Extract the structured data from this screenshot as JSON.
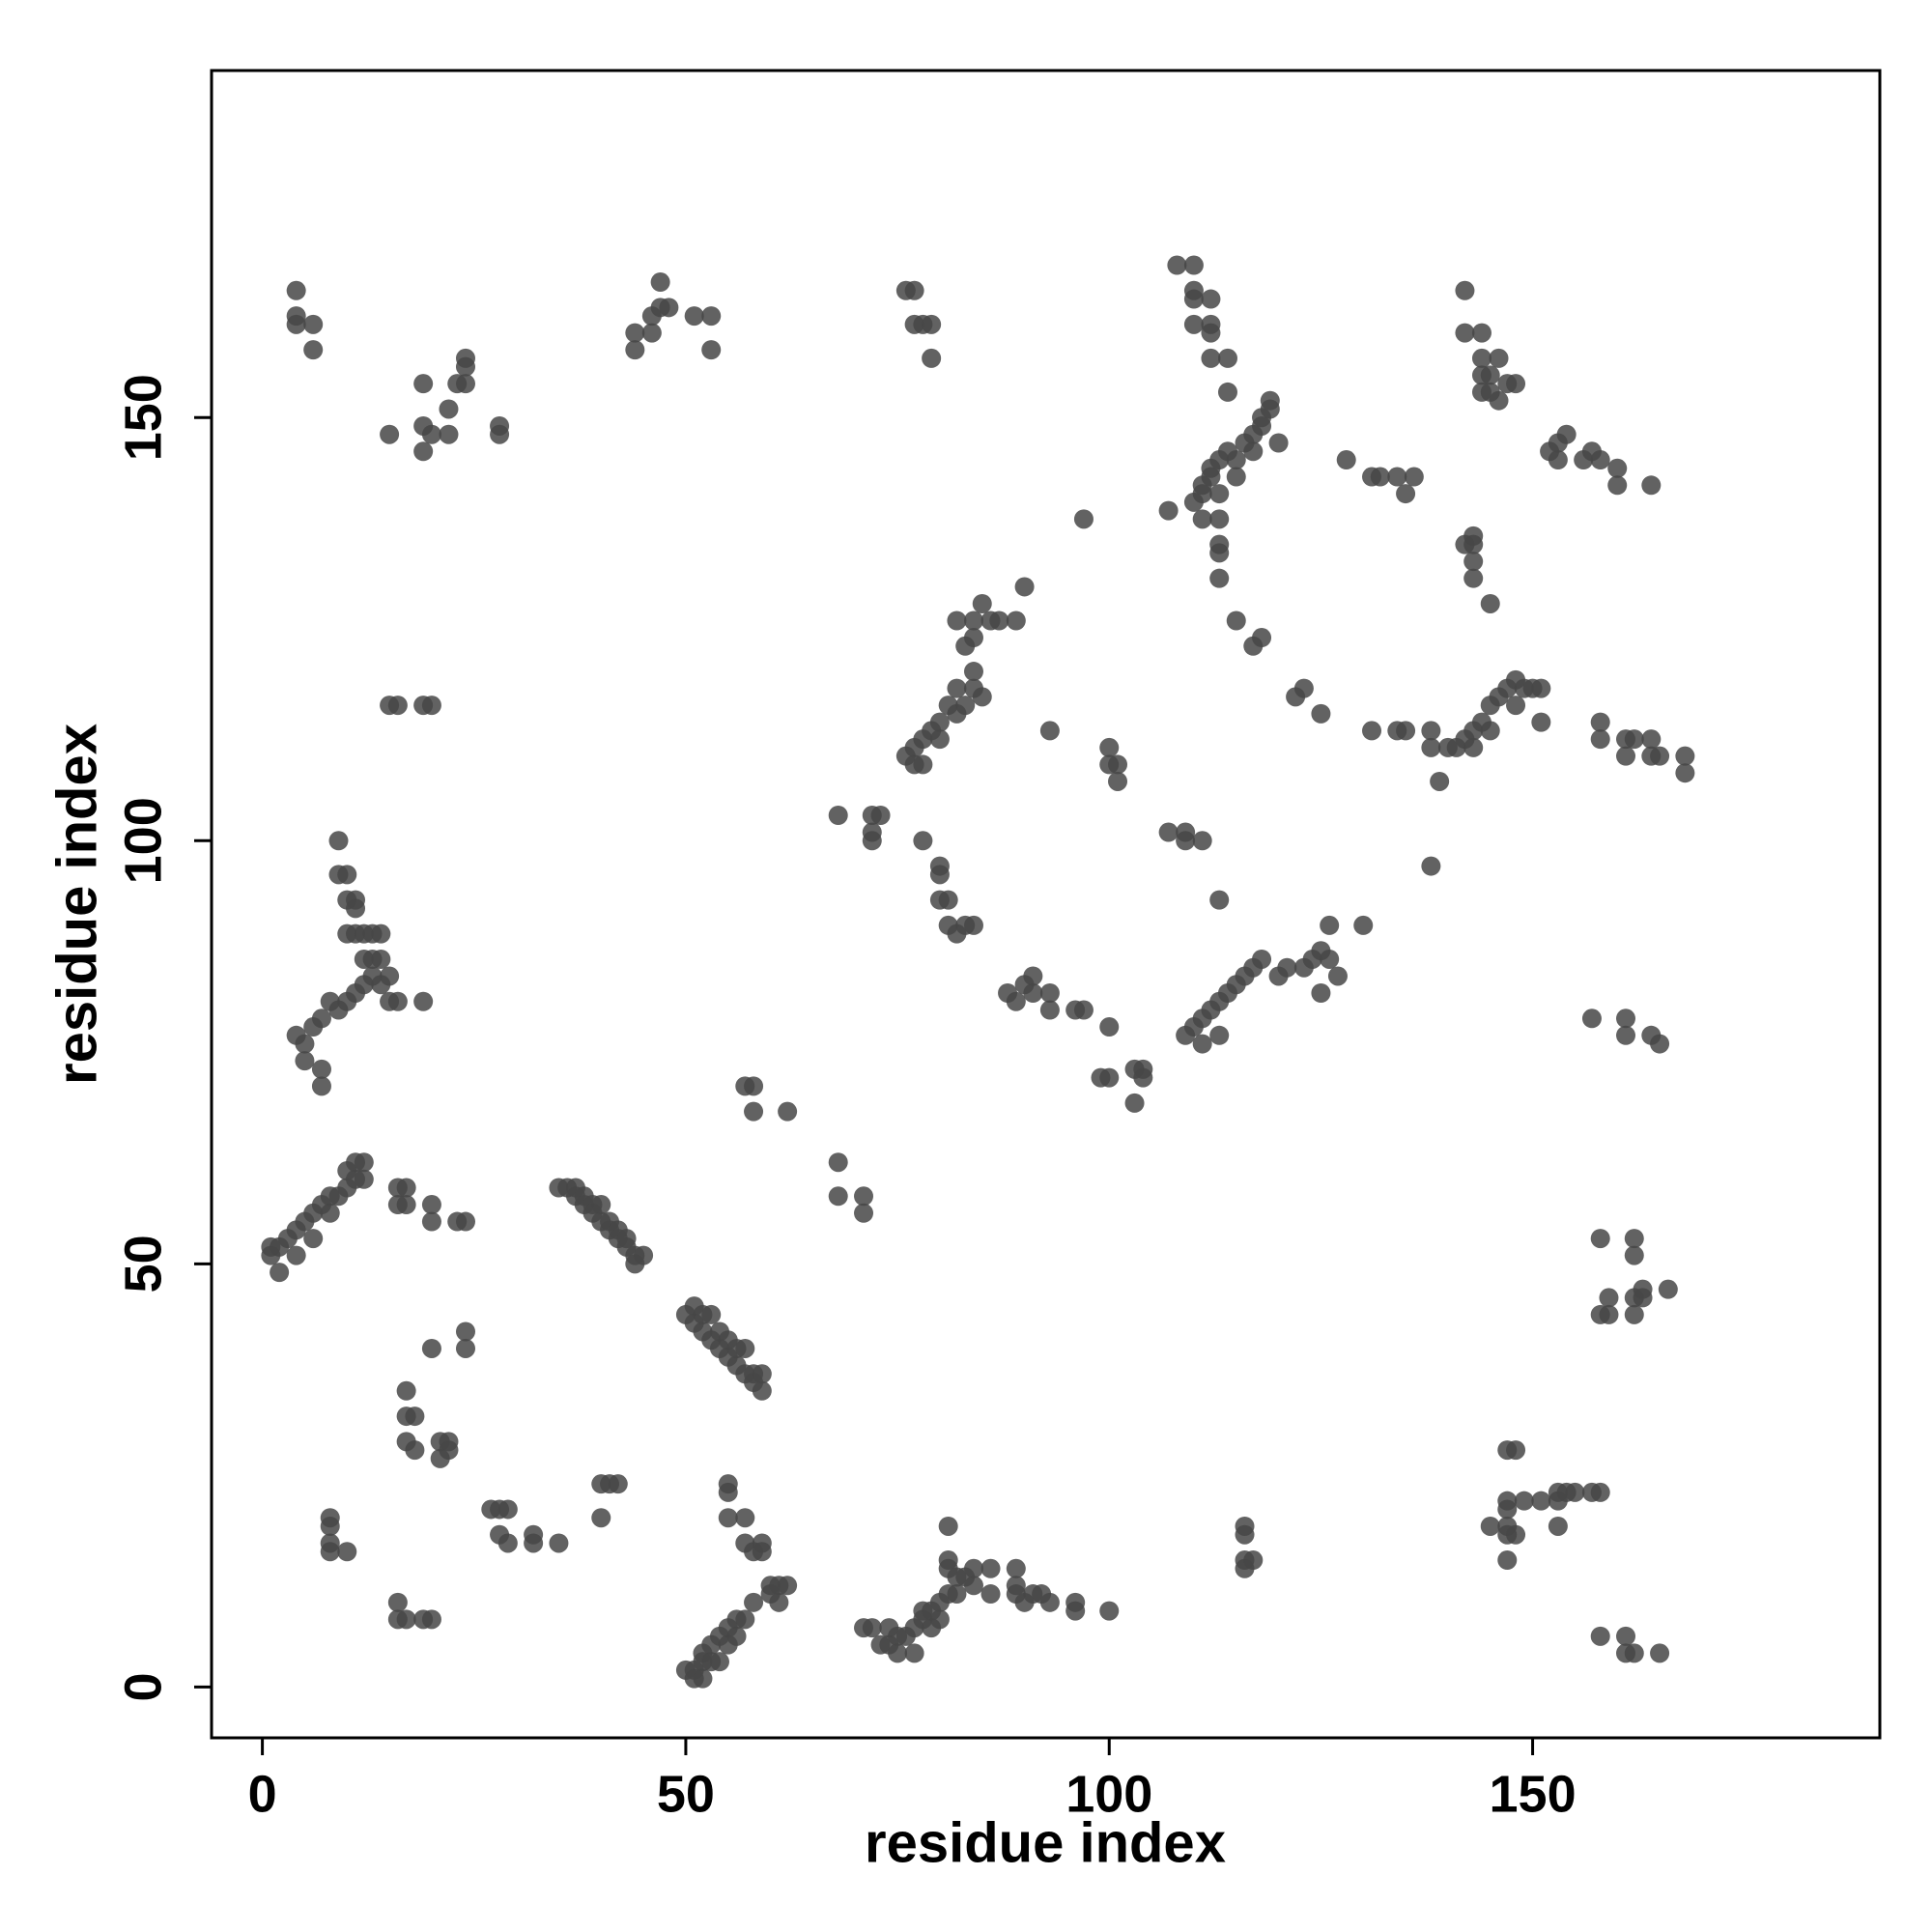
{
  "chart_data": {
    "type": "scatter",
    "xlabel": "residue index",
    "ylabel": "residue index",
    "xlim": [
      -6,
      191
    ],
    "ylim": [
      -6,
      191
    ],
    "xticks": [
      0,
      50,
      100,
      150
    ],
    "yticks": [
      0,
      50,
      100,
      150
    ],
    "series": [
      {
        "color": "#474747",
        "x": [
          4,
          4,
          4,
          6,
          6,
          15,
          20,
          19,
          19,
          19,
          22,
          22,
          23,
          24,
          24,
          24,
          28,
          28,
          15,
          16,
          19,
          20,
          44,
          44,
          46,
          46,
          47,
          47,
          48,
          51,
          53,
          53,
          76,
          77,
          77,
          78,
          79,
          79,
          108,
          110,
          110,
          110,
          110,
          112,
          112,
          112,
          112,
          114,
          114,
          110,
          111,
          111,
          112,
          112,
          113,
          114,
          115,
          116,
          117,
          118,
          118,
          119,
          119,
          120,
          117,
          115,
          113,
          111,
          113,
          113,
          113,
          113,
          115,
          117,
          118,
          128,
          131,
          132,
          134,
          135,
          136,
          142,
          142,
          144,
          144,
          144,
          145,
          146,
          145,
          146,
          147,
          148,
          144,
          152,
          153,
          153,
          154,
          156,
          157,
          158,
          160,
          160,
          164,
          142,
          143,
          143,
          143,
          143,
          145,
          107,
          97,
          84,
          83,
          84,
          84,
          86,
          87,
          82,
          85,
          89,
          90,
          82,
          84,
          85,
          81,
          80,
          79,
          78,
          77,
          76,
          77,
          78,
          80,
          82,
          83,
          93,
          100,
          100,
          101,
          101,
          122,
          123,
          125,
          131,
          134,
          135,
          138,
          138,
          139,
          140,
          141,
          142,
          143,
          144,
          145,
          146,
          147,
          148,
          149,
          150,
          151,
          143,
          145,
          148,
          151,
          158,
          158,
          161,
          162,
          161,
          164,
          164,
          165,
          168,
          168,
          138,
          68,
          72,
          72,
          72,
          73,
          78,
          80,
          80,
          80,
          81,
          81,
          82,
          83,
          84,
          107,
          109,
          109,
          111,
          113,
          88,
          89,
          90,
          91,
          91,
          93,
          93,
          96,
          97,
          100,
          99,
          100,
          103,
          104,
          104,
          103,
          109,
          110,
          111,
          112,
          113,
          114,
          115,
          116,
          117,
          118,
          120,
          121,
          123,
          124,
          125,
          126,
          127,
          125,
          126,
          130,
          111,
          113,
          157,
          161,
          161,
          164,
          165,
          4,
          5,
          5,
          6,
          7,
          7,
          7,
          8,
          9,
          10,
          11,
          12,
          13,
          14,
          15,
          16,
          19,
          10,
          11,
          12,
          13,
          14,
          12,
          13,
          14,
          10,
          11,
          11,
          9,
          10,
          9,
          15,
          57,
          58,
          58,
          62,
          68,
          68,
          71,
          71,
          1,
          1,
          2,
          2,
          3,
          4,
          4,
          5,
          6,
          6,
          7,
          8,
          8,
          9,
          10,
          10,
          11,
          11,
          12,
          12,
          16,
          16,
          17,
          17,
          20,
          20,
          23,
          24,
          35,
          36,
          37,
          37,
          38,
          38,
          39,
          39,
          40,
          40,
          41,
          41,
          42,
          42,
          43,
          43,
          44,
          44,
          45,
          50,
          51,
          51,
          52,
          52,
          53,
          53,
          54,
          54,
          55,
          55,
          56,
          56,
          57,
          57,
          58,
          58,
          59,
          59,
          20,
          24,
          24,
          17,
          17,
          18,
          17,
          18,
          21,
          21,
          22,
          22,
          27,
          28,
          28,
          29,
          29,
          32,
          32,
          35,
          40,
          40,
          41,
          42,
          8,
          8,
          8,
          8,
          10,
          16,
          16,
          17,
          19,
          20,
          55,
          55,
          55,
          57,
          57,
          58,
          59,
          59,
          60,
          61,
          62,
          60,
          61,
          58,
          57,
          56,
          55,
          56,
          54,
          53,
          52,
          52,
          51,
          53,
          54,
          55,
          51,
          52,
          50,
          71,
          72,
          73,
          74,
          74,
          75,
          75,
          76,
          77,
          77,
          78,
          78,
          79,
          79,
          80,
          80,
          81,
          82,
          81,
          81,
          82,
          83,
          81,
          84,
          84,
          86,
          86,
          89,
          89,
          89,
          90,
          91,
          92,
          93,
          96,
          96,
          100,
          116,
          116,
          116,
          116,
          117,
          147,
          148,
          147,
          147,
          149,
          151,
          153,
          153,
          154,
          155,
          157,
          158,
          153,
          147,
          147,
          147,
          145,
          148,
          158,
          158,
          159,
          159,
          162,
          162,
          162,
          162,
          163,
          163,
          166,
          158,
          161,
          161,
          162,
          165
        ],
        "values": [
          165,
          162,
          161,
          161,
          158,
          148,
          148,
          149,
          146,
          154,
          148,
          151,
          154,
          154,
          156,
          157,
          148,
          149,
          116,
          116,
          116,
          116,
          158,
          160,
          162,
          160,
          163,
          166,
          163,
          162,
          162,
          158,
          165,
          165,
          161,
          161,
          157,
          161,
          168,
          168,
          165,
          164,
          161,
          164,
          161,
          160,
          157,
          157,
          153,
          140,
          141,
          142,
          143,
          144,
          145,
          146,
          145,
          147,
          148,
          149,
          150,
          151,
          152,
          147,
          146,
          143,
          141,
          138,
          138,
          135,
          134,
          131,
          126,
          123,
          124,
          145,
          143,
          143,
          143,
          141,
          143,
          165,
          160,
          160,
          157,
          155,
          155,
          157,
          153,
          152,
          154,
          154,
          153,
          146,
          145,
          147,
          148,
          145,
          146,
          145,
          144,
          142,
          142,
          135,
          135,
          136,
          133,
          131,
          128,
          139,
          138,
          120,
          123,
          124,
          126,
          126,
          126,
          126,
          128,
          126,
          130,
          118,
          118,
          117,
          116,
          114,
          113,
          112,
          111,
          110,
          109,
          109,
          112,
          115,
          116,
          113,
          111,
          109,
          109,
          107,
          117,
          118,
          115,
          113,
          113,
          113,
          111,
          113,
          107,
          111,
          111,
          112,
          113,
          114,
          116,
          117,
          118,
          119,
          118,
          118,
          118,
          111,
          113,
          116,
          114,
          114,
          112,
          112,
          112,
          110,
          112,
          110,
          110,
          110,
          108,
          97,
          103,
          103,
          101,
          100,
          103,
          100,
          96,
          97,
          93,
          93,
          90,
          89,
          90,
          90,
          101,
          101,
          100,
          100,
          93,
          82,
          81,
          83,
          84,
          82,
          82,
          80,
          80,
          80,
          78,
          72,
          72,
          73,
          73,
          72,
          69,
          77,
          78,
          79,
          80,
          81,
          82,
          83,
          84,
          85,
          86,
          84,
          85,
          85,
          86,
          87,
          86,
          84,
          82,
          90,
          90,
          76,
          77,
          79,
          79,
          77,
          77,
          76,
          77,
          76,
          74,
          78,
          79,
          73,
          71,
          81,
          80,
          81,
          82,
          83,
          84,
          83,
          81,
          81,
          81,
          89,
          89,
          89,
          89,
          89,
          86,
          86,
          86,
          93,
          93,
          92,
          96,
          96,
          100,
          84,
          71,
          71,
          68,
          68,
          62,
          58,
          58,
          56,
          51,
          52,
          49,
          52,
          53,
          51,
          54,
          55,
          56,
          53,
          57,
          56,
          58,
          58,
          59,
          61,
          60,
          62,
          60,
          62,
          59,
          57,
          57,
          59,
          57,
          55,
          55,
          55,
          59,
          59,
          58,
          59,
          57,
          58,
          56,
          57,
          55,
          57,
          54,
          55,
          53,
          54,
          52,
          53,
          50,
          51,
          51,
          44,
          45,
          43,
          42,
          44,
          41,
          44,
          40,
          42,
          39,
          41,
          38,
          40,
          37,
          40,
          36,
          37,
          35,
          37,
          40,
          42,
          40,
          35,
          32,
          32,
          29,
          28,
          29,
          27,
          28,
          29,
          21,
          21,
          18,
          21,
          17,
          17,
          18,
          17,
          20,
          24,
          24,
          24,
          20,
          19,
          17,
          16,
          16,
          10,
          8,
          8,
          8,
          8,
          24,
          23,
          20,
          20,
          17,
          16,
          17,
          16,
          12,
          12,
          12,
          11,
          10,
          10,
          8,
          8,
          7,
          6,
          6,
          5,
          4,
          3,
          2,
          3,
          3,
          5,
          1,
          1,
          2,
          7,
          7,
          5,
          5,
          7,
          6,
          4,
          6,
          4,
          7,
          8,
          9,
          7,
          9,
          10,
          8,
          11,
          11,
          14,
          15,
          13,
          13,
          19,
          14,
          12,
          11,
          14,
          11,
          12,
          14,
          10,
          11,
          11,
          10,
          9,
          10,
          9,
          19,
          18,
          15,
          14,
          15,
          28,
          28,
          22,
          21,
          22,
          22,
          23,
          22,
          23,
          23,
          23,
          23,
          19,
          19,
          18,
          15,
          19,
          18,
          53,
          44,
          46,
          44,
          53,
          51,
          46,
          44,
          46,
          47,
          47,
          6,
          6,
          4,
          4,
          4
        ]
      }
    ]
  }
}
